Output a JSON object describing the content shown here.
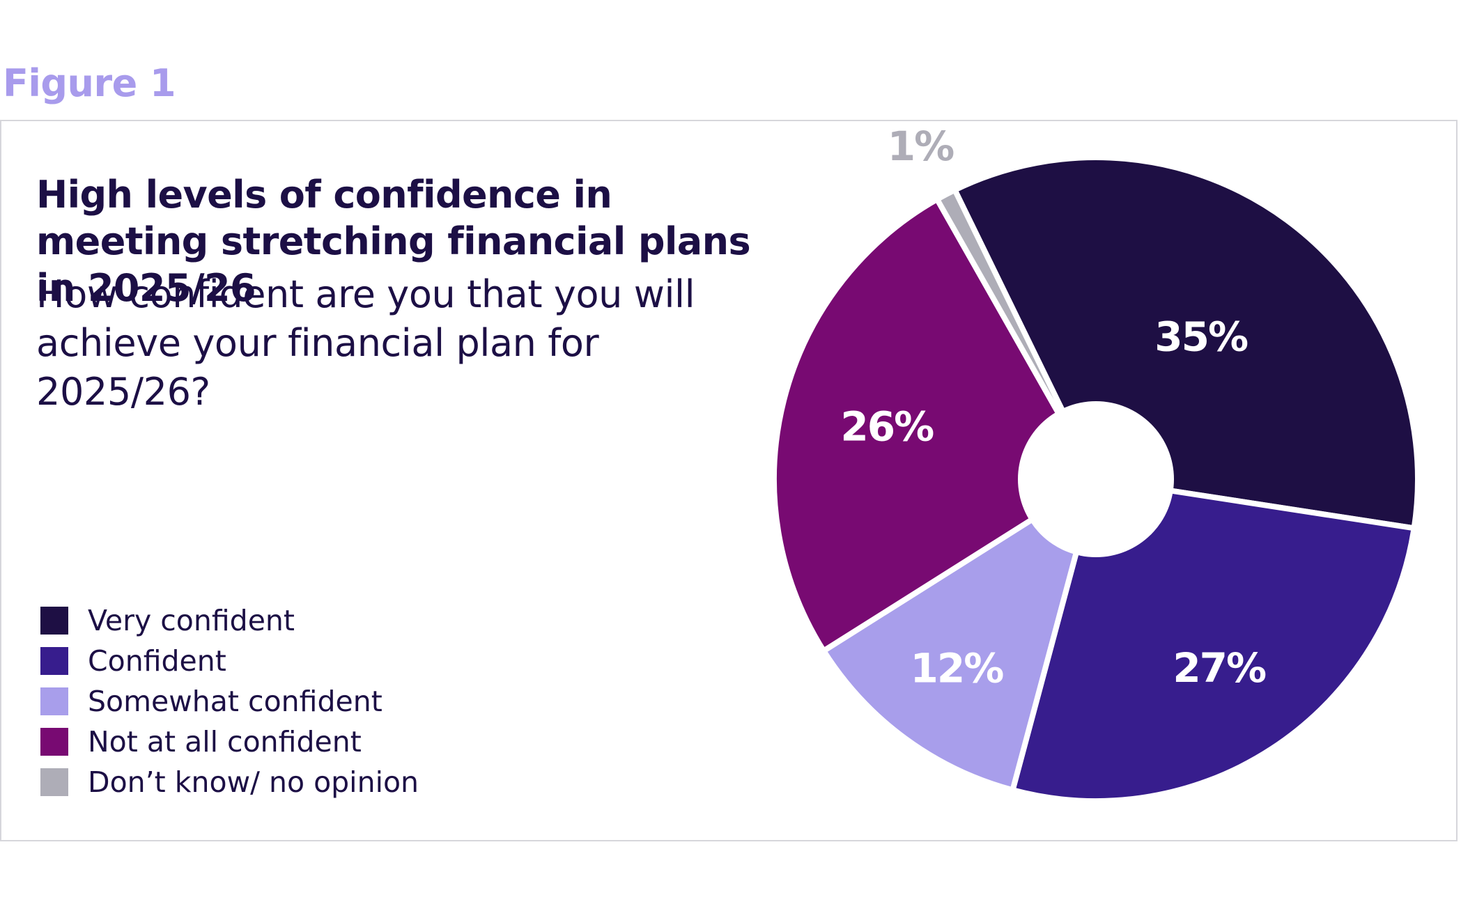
{
  "figure_label": "Figure 1",
  "chart_data": {
    "type": "pie",
    "title": "High levels of confidence in meeting stretching financial plans in 2025/26",
    "subtitle": "How confident are you that you will achieve your financial plan for 2025/26?",
    "legend_position": "bottom-left",
    "slices": [
      {
        "name": "Very confident",
        "value": 35,
        "label": "35%",
        "color": "#1e0f44"
      },
      {
        "name": "Confident",
        "value": 27,
        "label": "27%",
        "color": "#371d8d"
      },
      {
        "name": "Somewhat confident",
        "value": 12,
        "label": "12%",
        "color": "#a89eeb"
      },
      {
        "name": "Not at all confident",
        "value": 26,
        "label": "26%",
        "color": "#780a72"
      },
      {
        "name": "Don’t know/ no opinion",
        "value": 1,
        "label": "1%",
        "color": "#aeadb7"
      }
    ]
  }
}
